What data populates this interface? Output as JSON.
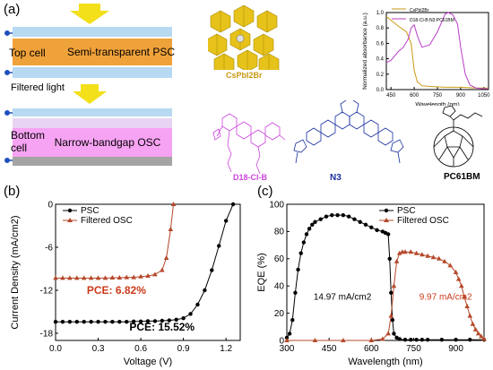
{
  "panels": {
    "a": "(a)",
    "b": "(b)",
    "c": "(c)"
  },
  "device": {
    "top_cell": "Top cell",
    "top_layer": "Semi-transparent PSC",
    "filtered_light": "Filtered light",
    "bottom_cell_line1": "Bottom",
    "bottom_cell_line2": "cell",
    "bottom_layer": "Narrow-bandgap OSC",
    "colors": {
      "glass": "#b7d9f1",
      "psc": "#f0a23a",
      "osc": "#f7a3f3",
      "electrode": "#a4a4a4",
      "arrow": "#f3df1a",
      "wire": "#1d4fbb"
    }
  },
  "molecules": {
    "perovskite": "CsPbI2Br",
    "polymer": "D18-Cl-B",
    "acceptor": "N3",
    "fullerene": "PC61BM",
    "perovskite_icon": "octahedra-crystal-icon",
    "polymer_icon": "polymer-structure-icon",
    "acceptor_icon": "n3-structure-icon",
    "fullerene_icon": "fullerene-icon",
    "perovskite_color": "#c89a12",
    "polymer_color": "#cc44dd",
    "acceptor_color": "#1a2fa0"
  },
  "inset_chart": {
    "chart_data": {
      "type": "line",
      "xlabel": "Wavelength (nm)",
      "ylabel": "Normalized absorbance (a.u.)",
      "xlim": [
        420,
        1080
      ],
      "ylim": [
        0,
        1.0
      ],
      "xticks": [
        450,
        600,
        750,
        900,
        1050
      ],
      "yticks": [
        0.0,
        0.2,
        0.4,
        0.6,
        0.8,
        1.0
      ],
      "series": [
        {
          "name": "CsPbI2Br",
          "color": "#c89a12",
          "x": [
            420,
            450,
            500,
            550,
            580,
            600,
            620,
            650,
            700,
            800,
            900,
            1000,
            1080
          ],
          "y": [
            0.95,
            0.9,
            0.82,
            0.75,
            0.6,
            0.25,
            0.1,
            0.05,
            0.04,
            0.03,
            0.03,
            0.02,
            0.02
          ]
        },
        {
          "name": "D18-Cl-B:N3:PC61BM",
          "color": "#b83ec8",
          "x": [
            420,
            450,
            500,
            530,
            560,
            580,
            600,
            620,
            650,
            700,
            750,
            800,
            820,
            850,
            880,
            900,
            930,
            960,
            1000,
            1050,
            1080
          ],
          "y": [
            0.35,
            0.38,
            0.5,
            0.55,
            0.65,
            0.8,
            0.84,
            0.7,
            0.55,
            0.58,
            0.75,
            0.98,
            1.0,
            0.97,
            0.85,
            0.55,
            0.2,
            0.06,
            0.02,
            0.01,
            0.01
          ]
        }
      ]
    }
  },
  "jv_chart": {
    "chart_data": {
      "type": "line",
      "xlabel": "Voltage (V)",
      "ylabel": "Current Density (mA/cm2)",
      "xlim": [
        0.0,
        1.3
      ],
      "ylim": [
        -19,
        0
      ],
      "xticks": [
        0.0,
        0.3,
        0.6,
        0.9,
        1.2
      ],
      "xtick_labels": [
        "0.0",
        "0.3",
        "0.6",
        "0.9",
        "1.2"
      ],
      "yticks": [
        -18,
        -12,
        -6,
        0
      ],
      "ytick_labels": [
        "-18",
        "-12",
        "-6",
        "0"
      ],
      "series": [
        {
          "name": "PSC",
          "color": "#000000",
          "marker": "circle",
          "x": [
            0.0,
            0.05,
            0.1,
            0.15,
            0.2,
            0.25,
            0.3,
            0.35,
            0.4,
            0.45,
            0.5,
            0.55,
            0.6,
            0.65,
            0.7,
            0.75,
            0.8,
            0.85,
            0.9,
            0.95,
            1.0,
            1.05,
            1.1,
            1.15,
            1.2,
            1.25
          ],
          "y": [
            -16.4,
            -16.4,
            -16.4,
            -16.4,
            -16.4,
            -16.4,
            -16.4,
            -16.4,
            -16.4,
            -16.4,
            -16.4,
            -16.35,
            -16.35,
            -16.3,
            -16.3,
            -16.25,
            -16.2,
            -16.1,
            -15.9,
            -15.3,
            -14.0,
            -12.0,
            -9.2,
            -5.8,
            -2.3,
            0.0
          ]
        },
        {
          "name": "Filtered OSC",
          "color": "#b5482a",
          "marker": "triangle",
          "x": [
            0.0,
            0.05,
            0.1,
            0.15,
            0.2,
            0.25,
            0.3,
            0.35,
            0.4,
            0.45,
            0.5,
            0.55,
            0.6,
            0.65,
            0.7,
            0.75,
            0.78,
            0.81,
            0.83
          ],
          "y": [
            -10.3,
            -10.3,
            -10.3,
            -10.3,
            -10.3,
            -10.3,
            -10.3,
            -10.3,
            -10.25,
            -10.25,
            -10.2,
            -10.2,
            -10.1,
            -10.0,
            -9.8,
            -9.2,
            -7.5,
            -3.5,
            0.0
          ]
        }
      ],
      "annotations": [
        {
          "text": "PCE: 6.82%",
          "x": 0.22,
          "y": -12.5,
          "color": "#cc3a1a"
        },
        {
          "text": "PCE: 15.52%",
          "x": 0.52,
          "y": -17.6,
          "color": "#000000"
        }
      ]
    }
  },
  "eqe_chart": {
    "chart_data": {
      "type": "line",
      "xlabel": "Wavelength (nm)",
      "ylabel": "EQE (%)",
      "xlim": [
        300,
        1000
      ],
      "ylim": [
        0,
        100
      ],
      "xticks": [
        300,
        450,
        600,
        750,
        900
      ],
      "yticks": [
        0,
        20,
        40,
        60,
        80,
        100
      ],
      "series": [
        {
          "name": "PSC",
          "color": "#000000",
          "marker": "circle",
          "x": [
            300,
            310,
            320,
            330,
            340,
            350,
            360,
            370,
            380,
            390,
            400,
            420,
            440,
            460,
            480,
            500,
            520,
            540,
            560,
            580,
            600,
            620,
            640,
            650,
            660,
            665,
            670,
            675,
            680,
            690,
            700,
            720,
            740,
            760,
            780,
            800,
            850,
            900,
            950,
            1000
          ],
          "y": [
            2,
            5,
            15,
            35,
            52,
            64,
            72,
            78,
            82,
            85,
            87,
            89,
            91,
            92,
            92,
            92,
            91,
            89,
            87,
            85,
            83,
            81,
            80,
            79,
            78,
            60,
            35,
            15,
            5,
            2,
            1,
            0.5,
            0.5,
            0.5,
            0.5,
            0.5,
            0.5,
            0.5,
            0.5,
            0.5
          ]
        },
        {
          "name": "Filtered OSC",
          "color": "#b5482a",
          "marker": "triangle",
          "x": [
            300,
            400,
            500,
            600,
            640,
            660,
            670,
            680,
            690,
            700,
            710,
            720,
            740,
            760,
            780,
            800,
            820,
            840,
            860,
            880,
            900,
            910,
            920,
            930,
            940,
            950,
            960,
            970,
            980,
            990,
            1000
          ],
          "y": [
            0,
            0,
            0,
            0,
            1,
            5,
            18,
            40,
            58,
            64,
            65,
            65,
            65,
            64,
            63,
            62,
            61,
            60,
            58,
            55,
            50,
            45,
            40,
            32,
            25,
            18,
            12,
            8,
            5,
            3,
            1
          ]
        }
      ],
      "annotations": [
        {
          "text": "14.97 mA/cm2",
          "x": 395,
          "y": 30,
          "color": "#000000"
        },
        {
          "text": "9.97 mA/cm2",
          "x": 770,
          "y": 30,
          "color": "#cc3a1a"
        }
      ]
    }
  }
}
